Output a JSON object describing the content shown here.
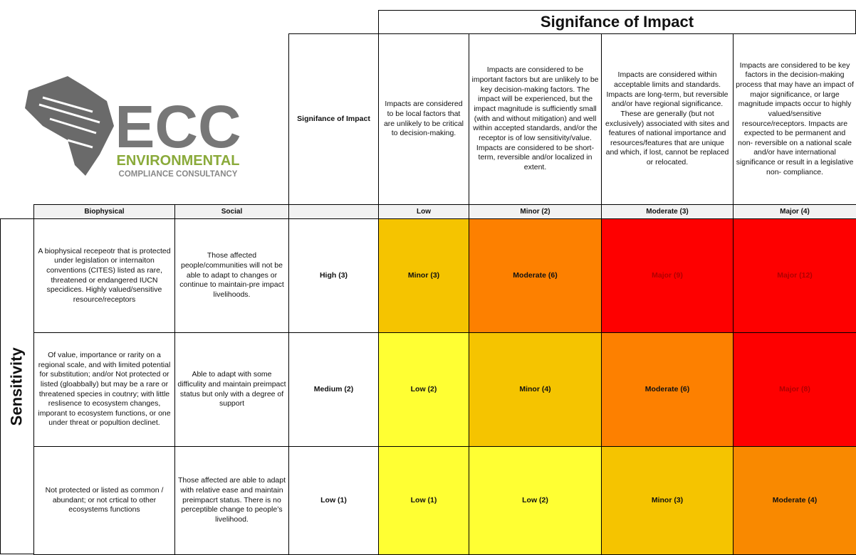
{
  "title": "Signifance of Impact",
  "logo": {
    "mark": "ECC",
    "line1": "ENVIRONMENTAL",
    "line2": "COMPLIANCE CONSULTANCY"
  },
  "impact_label": "Signifance of Impact",
  "descriptions": [
    "Impacts are considered to be local factors that are unlikely to be critical to decision-making.",
    "Impacts are considered to be important factors but are unlikely to be key decision-making factors. The impact will be experienced, but the impact magnitude is sufficiently small (with and without mitigation) and well within accepted standards, and/or the receptor is of low sensitivity/value.  Impacts are considered to be short-term, reversible and/or localized in extent.",
    "Impacts are considered within acceptable limits and standards. Impacts are long-term, but reversible and/or have regional significance.  These are generally (but not exclusively) associated with sites and features of national importance and resources/features that are unique and which, if lost, cannot be replaced or relocated.",
    "Impacts are considered to be key factors in the decision-making process that may have an impact of major significance, or large magnitude impacts occur to highly valued/sensitive resource/receptors. Impacts are expected to be permanent and non- reversible on a national scale and/or have international significance or result in a legislative non- compliance."
  ],
  "columns": [
    "Biophysical",
    "Social",
    "Low",
    "Minor (2)",
    "Moderate (3)",
    "Major (4)"
  ],
  "row_label": "Sensitivity",
  "rows": [
    {
      "biophysical": "A biophysical recepeotr that is protected under legislation or internaiton conventions (CITES) listed as rare, threatened or endangered IUCN specidices. Highly valued/sensitive resource/receptors",
      "social": "Those affected people/communities will not be able to adapt to changes or continue to maintain-pre impact livelihoods.",
      "level": "High (3)",
      "cells": [
        {
          "text": "Minor (3)",
          "color": "#f5c400"
        },
        {
          "text": "Moderate (6)",
          "color": "#fd8000"
        },
        {
          "text": "Major (9)",
          "color": "#fe0000"
        },
        {
          "text": "Major (12)",
          "color": "#fe0000"
        }
      ]
    },
    {
      "biophysical": "Of value, importance or rarity on a regional scale, and with limited potential for substitution; and/or Not protected or listed (gloabbally) but may be a rare or threatened species in coutnry; with little reslisence to ecosystem changes, imporant to ecosystem functions, or one under threat or popultion declinet.",
      "social": "Able to adapt with some difficulity and maintain preimpact status but only with a degree of support",
      "level": "Medium (2)",
      "cells": [
        {
          "text": "Low (2)",
          "color": "#ffff33"
        },
        {
          "text": "Minor (4)",
          "color": "#f5c400"
        },
        {
          "text": "Moderate (6)",
          "color": "#fd8000"
        },
        {
          "text": "Major (8)",
          "color": "#fe0000"
        }
      ]
    },
    {
      "biophysical": "Not protected or listed as common / abundant; or not crtical to other ecosystems functions",
      "social": "Those affected are able to adapt with relative ease and maintain preimpacrt status. There is no perceptible change to people’s livelihood.",
      "level": "Low (1)",
      "cells": [
        {
          "text": "Low (1)",
          "color": "#ffff33"
        },
        {
          "text": "Low (2)",
          "color": "#ffff33"
        },
        {
          "text": "Minor (3)",
          "color": "#f5c400"
        },
        {
          "text": "Moderate (4)",
          "color": "#f98900"
        }
      ]
    }
  ]
}
